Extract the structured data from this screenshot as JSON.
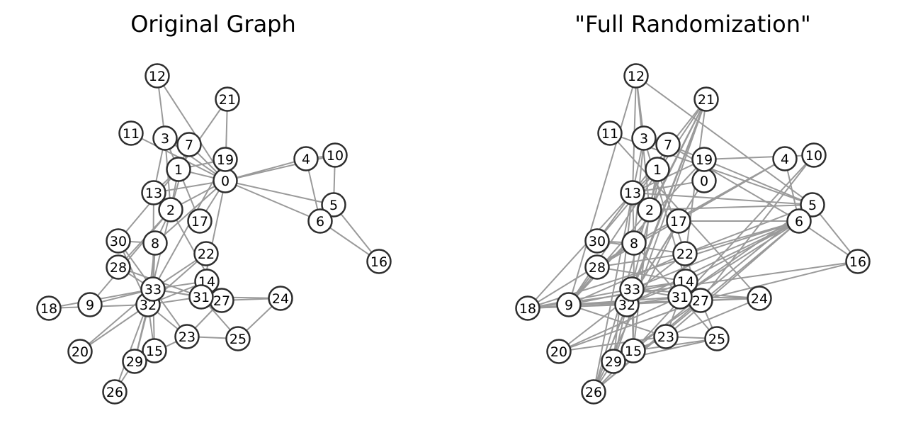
{
  "panels": [
    {
      "id": "original",
      "title": "Original Graph",
      "nodes": [
        "0",
        "1",
        "2",
        "3",
        "4",
        "5",
        "6",
        "7",
        "8",
        "9",
        "10",
        "11",
        "12",
        "13",
        "14",
        "15",
        "16",
        "17",
        "18",
        "19",
        "20",
        "21",
        "22",
        "23",
        "24",
        "25",
        "26",
        "27",
        "28",
        "29",
        "30",
        "31",
        "32",
        "33"
      ],
      "edges": [
        [
          0,
          1
        ],
        [
          0,
          2
        ],
        [
          0,
          3
        ],
        [
          0,
          4
        ],
        [
          0,
          5
        ],
        [
          0,
          6
        ],
        [
          0,
          7
        ],
        [
          0,
          8
        ],
        [
          0,
          10
        ],
        [
          0,
          11
        ],
        [
          0,
          12
        ],
        [
          0,
          13
        ],
        [
          0,
          17
        ],
        [
          0,
          19
        ],
        [
          0,
          21
        ],
        [
          0,
          31
        ],
        [
          1,
          2
        ],
        [
          1,
          3
        ],
        [
          1,
          7
        ],
        [
          1,
          13
        ],
        [
          1,
          17
        ],
        [
          1,
          19
        ],
        [
          1,
          21
        ],
        [
          1,
          30
        ],
        [
          2,
          3
        ],
        [
          2,
          7
        ],
        [
          2,
          8
        ],
        [
          2,
          9
        ],
        [
          2,
          13
        ],
        [
          2,
          27
        ],
        [
          2,
          28
        ],
        [
          2,
          32
        ],
        [
          3,
          7
        ],
        [
          3,
          12
        ],
        [
          3,
          13
        ],
        [
          4,
          6
        ],
        [
          4,
          10
        ],
        [
          5,
          6
        ],
        [
          5,
          10
        ],
        [
          5,
          16
        ],
        [
          6,
          16
        ],
        [
          8,
          30
        ],
        [
          8,
          32
        ],
        [
          8,
          33
        ],
        [
          9,
          33
        ],
        [
          13,
          33
        ],
        [
          14,
          32
        ],
        [
          14,
          33
        ],
        [
          15,
          32
        ],
        [
          15,
          33
        ],
        [
          18,
          32
        ],
        [
          18,
          33
        ],
        [
          19,
          33
        ],
        [
          20,
          32
        ],
        [
          20,
          33
        ],
        [
          22,
          32
        ],
        [
          22,
          33
        ],
        [
          23,
          25
        ],
        [
          23,
          27
        ],
        [
          23,
          29
        ],
        [
          23,
          32
        ],
        [
          23,
          33
        ],
        [
          24,
          25
        ],
        [
          24,
          27
        ],
        [
          24,
          31
        ],
        [
          25,
          31
        ],
        [
          26,
          29
        ],
        [
          26,
          33
        ],
        [
          27,
          33
        ],
        [
          28,
          31
        ],
        [
          28,
          33
        ],
        [
          29,
          32
        ],
        [
          29,
          33
        ],
        [
          30,
          32
        ],
        [
          30,
          33
        ],
        [
          31,
          32
        ],
        [
          31,
          33
        ],
        [
          32,
          33
        ]
      ]
    },
    {
      "id": "randomized",
      "title": "\"Full Randomization\"",
      "nodes": [
        "0",
        "1",
        "2",
        "3",
        "4",
        "5",
        "6",
        "7",
        "8",
        "9",
        "10",
        "11",
        "12",
        "13",
        "14",
        "15",
        "16",
        "17",
        "18",
        "19",
        "20",
        "21",
        "22",
        "23",
        "24",
        "25",
        "26",
        "27",
        "28",
        "29",
        "30",
        "31",
        "32",
        "33"
      ],
      "edges": [
        [
          12,
          13
        ],
        [
          12,
          2
        ],
        [
          12,
          3
        ],
        [
          12,
          5
        ],
        [
          12,
          9
        ],
        [
          21,
          13
        ],
        [
          21,
          2
        ],
        [
          21,
          8
        ],
        [
          21,
          9
        ],
        [
          21,
          29
        ],
        [
          21,
          33
        ],
        [
          21,
          26
        ],
        [
          21,
          31
        ],
        [
          11,
          5
        ],
        [
          11,
          24
        ],
        [
          3,
          13
        ],
        [
          3,
          14
        ],
        [
          3,
          8
        ],
        [
          7,
          6
        ],
        [
          7,
          19
        ],
        [
          7,
          26
        ],
        [
          7,
          32
        ],
        [
          19,
          10
        ],
        [
          19,
          5
        ],
        [
          19,
          13
        ],
        [
          19,
          9
        ],
        [
          1,
          13
        ],
        [
          1,
          2
        ],
        [
          1,
          27
        ],
        [
          1,
          30
        ],
        [
          0,
          13
        ],
        [
          0,
          32
        ],
        [
          4,
          28
        ],
        [
          4,
          6
        ],
        [
          4,
          8
        ],
        [
          10,
          15
        ],
        [
          10,
          27
        ],
        [
          5,
          6
        ],
        [
          5,
          16
        ],
        [
          5,
          2
        ],
        [
          5,
          13
        ],
        [
          5,
          31
        ],
        [
          5,
          15
        ],
        [
          5,
          22
        ],
        [
          6,
          16
        ],
        [
          6,
          18
        ],
        [
          6,
          26
        ],
        [
          6,
          23
        ],
        [
          6,
          22
        ],
        [
          6,
          33
        ],
        [
          6,
          32
        ],
        [
          6,
          14
        ],
        [
          6,
          17
        ],
        [
          6,
          31
        ],
        [
          16,
          27
        ],
        [
          16,
          18
        ],
        [
          13,
          2
        ],
        [
          13,
          8
        ],
        [
          13,
          26
        ],
        [
          13,
          29
        ],
        [
          13,
          30
        ],
        [
          13,
          18
        ],
        [
          2,
          9
        ],
        [
          2,
          15
        ],
        [
          17,
          26
        ],
        [
          17,
          32
        ],
        [
          30,
          22
        ],
        [
          30,
          8
        ],
        [
          8,
          28
        ],
        [
          8,
          18
        ],
        [
          8,
          25
        ],
        [
          8,
          15
        ],
        [
          22,
          28
        ],
        [
          22,
          9
        ],
        [
          22,
          20
        ],
        [
          28,
          9
        ],
        [
          28,
          14
        ],
        [
          14,
          32
        ],
        [
          14,
          33
        ],
        [
          14,
          23
        ],
        [
          14,
          9
        ],
        [
          33,
          18
        ],
        [
          33,
          27
        ],
        [
          33,
          15
        ],
        [
          33,
          32
        ],
        [
          31,
          9
        ],
        [
          31,
          18
        ],
        [
          31,
          24
        ],
        [
          31,
          32
        ],
        [
          31,
          20
        ],
        [
          27,
          25
        ],
        [
          27,
          29
        ],
        [
          27,
          24
        ],
        [
          27,
          20
        ],
        [
          27,
          26
        ],
        [
          27,
          9
        ],
        [
          32,
          18
        ],
        [
          32,
          26
        ],
        [
          32,
          29
        ],
        [
          9,
          23
        ],
        [
          24,
          33
        ],
        [
          24,
          15
        ],
        [
          23,
          25
        ],
        [
          23,
          29
        ],
        [
          25,
          15
        ],
        [
          25,
          29
        ],
        [
          15,
          26
        ],
        [
          29,
          26
        ],
        [
          20,
          23
        ],
        [
          18,
          24
        ]
      ]
    }
  ]
}
